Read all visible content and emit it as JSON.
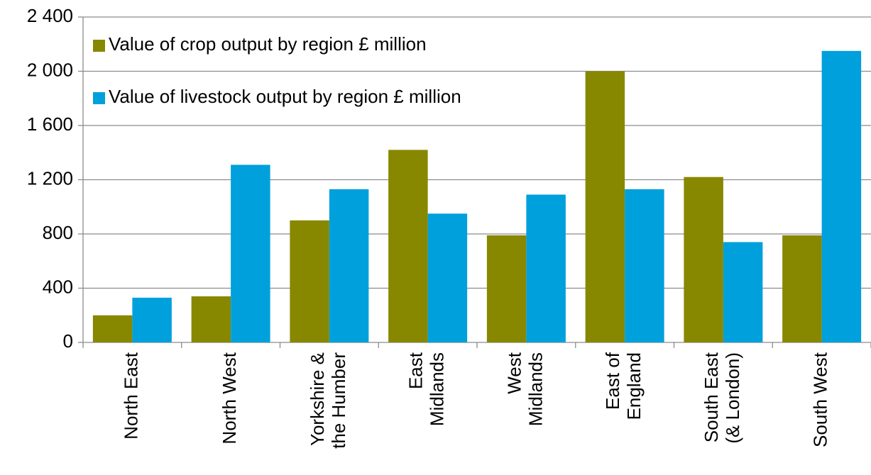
{
  "chart_data": {
    "type": "bar",
    "categories": [
      [
        "North East"
      ],
      [
        "North West"
      ],
      [
        "Yorkshire &",
        "the Humber"
      ],
      [
        "East",
        "Midlands"
      ],
      [
        "West",
        "Midlands"
      ],
      [
        "East of",
        "England"
      ],
      [
        "South East",
        "(& London)"
      ],
      [
        "South West"
      ]
    ],
    "series": [
      {
        "name": "Value of crop output by region £ million",
        "color": "#878700",
        "values": [
          200,
          340,
          900,
          1420,
          790,
          2000,
          1220,
          790
        ]
      },
      {
        "name": "Value of livestock output by region £ million",
        "color": "#00a0dc",
        "values": [
          330,
          1310,
          1130,
          950,
          1090,
          1130,
          740,
          2150
        ]
      }
    ],
    "ylim": [
      0,
      2400
    ],
    "yticks": [
      0,
      400,
      800,
      {
        "value": 1200,
        "label": "1 200"
      },
      {
        "value": 1600,
        "label": "1 600"
      },
      {
        "value": 2000,
        "label": "2 000"
      },
      {
        "value": 2400,
        "label": "2 400"
      }
    ],
    "grid": true,
    "legend": "upper left"
  }
}
